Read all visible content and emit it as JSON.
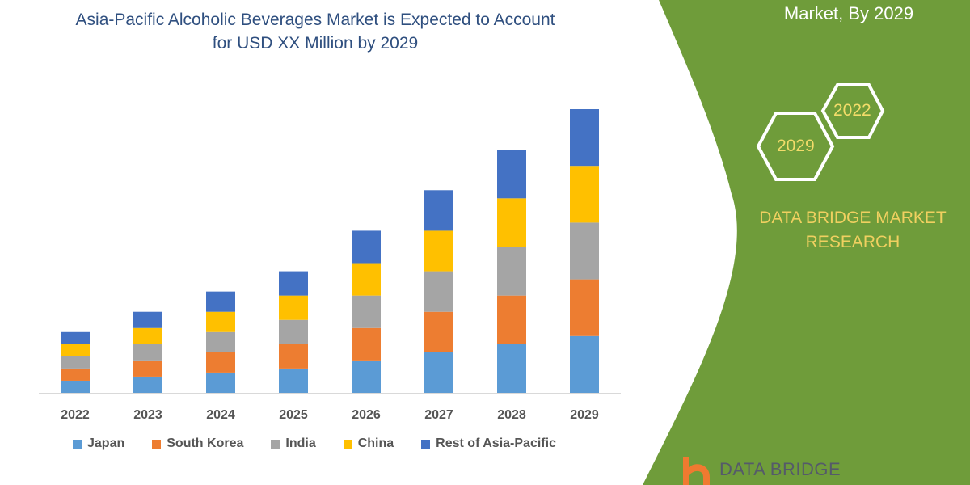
{
  "header": {
    "title_line1": "Asia-Pacific Alcoholic Beverages Market is Expected to Account",
    "title_line2": "for USD XX Million by 2029"
  },
  "side_panel": {
    "title": "Market, By 2029",
    "hex_years": [
      "2022",
      "2029"
    ],
    "brand": [
      "DATA BRIDGE MARKET",
      "RESEARCH"
    ],
    "logo_text": "DATA BRIDGE",
    "background_color": "#6f9c3a"
  },
  "chart_data": {
    "type": "bar",
    "stacked": true,
    "title": "",
    "xlabel": "",
    "ylabel": "",
    "categories": [
      "2022",
      "2023",
      "2024",
      "2025",
      "2026",
      "2027",
      "2028",
      "2029"
    ],
    "series": [
      {
        "name": "Japan",
        "color": "#5b9bd5",
        "values": [
          15,
          20,
          25,
          30,
          40,
          50,
          60,
          70
        ]
      },
      {
        "name": "South Korea",
        "color": "#ed7d31",
        "values": [
          15,
          20,
          25,
          30,
          40,
          50,
          60,
          70
        ]
      },
      {
        "name": "India",
        "color": "#a5a5a5",
        "values": [
          15,
          20,
          25,
          30,
          40,
          50,
          60,
          70
        ]
      },
      {
        "name": "China",
        "color": "#ffc000",
        "values": [
          15,
          20,
          25,
          30,
          40,
          50,
          60,
          70
        ]
      },
      {
        "name": "Rest of Asia-Pacific",
        "color": "#4472c4",
        "values": [
          15,
          20,
          25,
          30,
          40,
          50,
          60,
          70
        ]
      }
    ],
    "ylim": [
      0,
      350
    ],
    "y_axis_shown": false,
    "grid": false,
    "legend_position": "bottom"
  }
}
